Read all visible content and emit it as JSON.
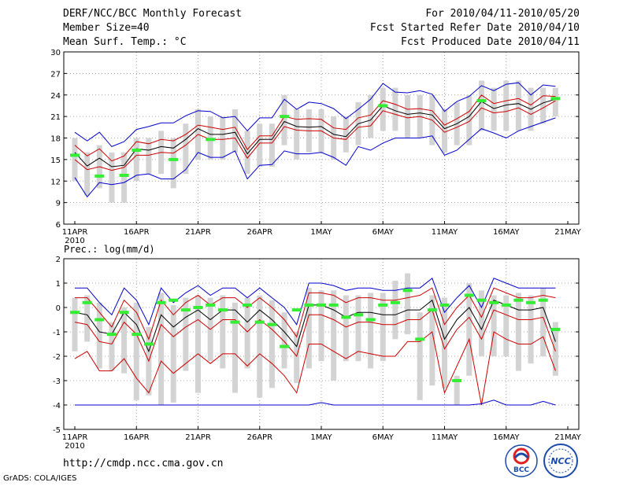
{
  "header": {
    "title": "DERF/NCC/BCC Monthly Forecast",
    "member_size": "Member Size=40",
    "variable": "Mean Surf. Temp.: °C",
    "period": "For 2010/04/11-2010/05/20",
    "refer_date": "Fcst Started Refer Date 2010/04/10",
    "produced_date": "Fcst Produced Date 2010/04/11"
  },
  "footer": {
    "url": "http://cmdp.ncc.cma.gov.cn",
    "grads": "GrADS: COLA/IGES",
    "logo_left": "BCC",
    "logo_right": "NCC"
  },
  "colors": {
    "box": "#d3d3d3",
    "green": "#33ee33",
    "blue": "#0000cc",
    "red": "#cc0000",
    "mean": "#000000"
  },
  "chart_data": [
    {
      "type": "line",
      "title": "Mean Surf. Temp.: °C",
      "ylim": [
        6,
        30
      ],
      "yticks": [
        6,
        9,
        12,
        15,
        18,
        21,
        24,
        27,
        30
      ],
      "x": [
        0,
        1,
        2,
        3,
        4,
        5,
        6,
        7,
        8,
        9,
        10,
        11,
        12,
        13,
        14,
        15,
        16,
        17,
        18,
        19,
        20,
        21,
        22,
        23,
        24,
        25,
        26,
        27,
        28,
        29,
        30,
        31,
        32,
        33,
        34,
        35,
        36,
        37,
        38,
        39
      ],
      "xticks": [
        0,
        5,
        10,
        15,
        20,
        25,
        30,
        35,
        40
      ],
      "xtick_labels": [
        "11APR",
        "16APR",
        "21APR",
        "26APR",
        "1MAY",
        "6MAY",
        "11MAY",
        "16MAY",
        "21MAY"
      ],
      "year_label": "2010",
      "series": [
        {
          "name": "ensemble max",
          "color": "blue",
          "values": [
            18.8,
            17.6,
            18.8,
            16.8,
            17.5,
            19.2,
            19.6,
            20.1,
            20.1,
            21.1,
            21.8,
            21.7,
            20.8,
            21.0,
            19.0,
            20.8,
            20.8,
            23.4,
            22.0,
            23.0,
            22.8,
            22.1,
            20.7,
            22.0,
            23.4,
            25.6,
            24.4,
            24.3,
            24.6,
            24.1,
            21.7,
            23.1,
            23.8,
            25.3,
            24.6,
            25.5,
            25.7,
            24.0,
            25.4,
            25.2
          ]
        },
        {
          "name": "upper percentile",
          "color": "red",
          "values": [
            17.0,
            15.5,
            16.5,
            14.8,
            15.5,
            17.5,
            17.2,
            17.8,
            17.6,
            18.5,
            19.8,
            19.5,
            19.2,
            19.5,
            16.4,
            18.3,
            18.3,
            21.0,
            20.6,
            20.7,
            20.6,
            19.4,
            19.2,
            20.8,
            21.2,
            23.2,
            22.7,
            22.0,
            22.1,
            21.8,
            19.8,
            20.7,
            21.7,
            24.0,
            22.8,
            23.2,
            23.5,
            22.6,
            23.9,
            23.8
          ]
        },
        {
          "name": "ensemble mean",
          "color": "mean",
          "values": [
            16.0,
            14.1,
            15.2,
            14.0,
            14.2,
            16.5,
            16.3,
            16.8,
            16.6,
            17.8,
            19.3,
            18.5,
            18.5,
            18.8,
            15.8,
            17.8,
            17.8,
            20.3,
            19.6,
            19.5,
            19.6,
            18.5,
            18.2,
            20.0,
            20.5,
            22.5,
            21.8,
            21.3,
            21.5,
            21.2,
            19.3,
            20.0,
            21.0,
            23.1,
            22.1,
            22.6,
            22.8,
            22.0,
            22.9,
            23.4
          ]
        },
        {
          "name": "lower percentile",
          "color": "red",
          "values": [
            15.0,
            13.6,
            14.0,
            13.5,
            13.9,
            15.6,
            15.6,
            16.0,
            15.9,
            17.0,
            18.5,
            17.8,
            17.8,
            18.0,
            15.2,
            17.3,
            17.3,
            19.6,
            19.1,
            19.0,
            19.0,
            18.0,
            17.8,
            19.5,
            19.7,
            21.8,
            21.3,
            20.8,
            21.0,
            20.5,
            18.8,
            19.5,
            20.3,
            22.2,
            21.5,
            21.7,
            22.2,
            21.3,
            22.2,
            23.2
          ]
        },
        {
          "name": "ensemble min",
          "color": "blue",
          "values": [
            12.5,
            9.8,
            11.8,
            11.5,
            11.8,
            12.8,
            13.0,
            12.3,
            12.3,
            13.6,
            16.0,
            15.3,
            15.3,
            16.2,
            12.3,
            14.2,
            14.3,
            16.2,
            15.8,
            15.8,
            16.0,
            15.3,
            14.2,
            16.8,
            16.3,
            17.3,
            18.0,
            18.0,
            18.0,
            18.3,
            15.6,
            16.3,
            17.8,
            19.3,
            18.7,
            18.0,
            19.0,
            19.6,
            20.2,
            20.8
          ]
        },
        {
          "name": "observation",
          "color": "green",
          "values": [
            15.6,
            null,
            12.7,
            null,
            12.8,
            16.3,
            null,
            null,
            15.0,
            null,
            null,
            17.8,
            null,
            null,
            null,
            null,
            null,
            21.0,
            null,
            null,
            null,
            null,
            null,
            null,
            null,
            22.5,
            null,
            null,
            null,
            null,
            null,
            null,
            null,
            23.2,
            null,
            null,
            null,
            null,
            null,
            23.5
          ]
        }
      ],
      "box_ranges": [
        [
          12,
          18
        ],
        [
          10,
          16
        ],
        [
          11,
          17
        ],
        [
          9,
          16
        ],
        [
          9,
          16
        ],
        [
          12,
          18
        ],
        [
          13,
          18
        ],
        [
          13,
          19
        ],
        [
          11,
          18
        ],
        [
          13,
          20
        ],
        [
          15,
          22
        ],
        [
          15,
          21
        ],
        [
          15,
          21
        ],
        [
          16,
          22
        ],
        [
          13,
          19
        ],
        [
          14,
          20
        ],
        [
          14,
          20
        ],
        [
          17,
          24
        ],
        [
          15,
          22
        ],
        [
          16,
          22
        ],
        [
          16,
          22
        ],
        [
          15,
          21
        ],
        [
          16,
          21
        ],
        [
          17,
          23
        ],
        [
          18,
          24
        ],
        [
          19,
          25
        ],
        [
          19,
          25
        ],
        [
          18,
          24
        ],
        [
          18,
          24
        ],
        [
          17,
          24
        ],
        [
          16,
          22
        ],
        [
          17,
          23
        ],
        [
          17,
          24
        ],
        [
          19,
          26
        ],
        [
          19,
          25
        ],
        [
          19,
          26
        ],
        [
          19,
          26
        ],
        [
          19,
          25
        ],
        [
          20,
          25
        ],
        [
          21,
          25
        ]
      ]
    },
    {
      "type": "line",
      "title": "Prec.: log(mm/d)",
      "ylim": [
        -5,
        2
      ],
      "yticks": [
        -5,
        -4,
        -3,
        -2,
        -1,
        0,
        1,
        2
      ],
      "x": [
        0,
        1,
        2,
        3,
        4,
        5,
        6,
        7,
        8,
        9,
        10,
        11,
        12,
        13,
        14,
        15,
        16,
        17,
        18,
        19,
        20,
        21,
        22,
        23,
        24,
        25,
        26,
        27,
        28,
        29,
        30,
        31,
        32,
        33,
        34,
        35,
        36,
        37,
        38,
        39
      ],
      "xticks": [
        0,
        5,
        10,
        15,
        20,
        25,
        30,
        35,
        40
      ],
      "xtick_labels": [
        "11APR",
        "16APR",
        "21APR",
        "26APR",
        "1MAY",
        "6MAY",
        "11MAY",
        "16MAY",
        "21MAY"
      ],
      "year_label": "2010",
      "series": [
        {
          "name": "ensemble max",
          "color": "blue",
          "values": [
            0.8,
            0.8,
            0.2,
            -0.3,
            0.8,
            0.3,
            -0.7,
            0.8,
            0.2,
            0.6,
            0.9,
            0.5,
            0.8,
            0.8,
            0.4,
            0.8,
            0.4,
            0.0,
            -0.7,
            1.0,
            1.0,
            0.9,
            0.7,
            0.8,
            0.8,
            0.7,
            0.7,
            0.8,
            0.8,
            1.2,
            -0.2,
            0.4,
            0.9,
            0.0,
            1.2,
            1.0,
            0.8,
            0.8,
            0.8,
            0.8
          ]
        },
        {
          "name": "upper percentile",
          "color": "red",
          "values": [
            0.4,
            0.4,
            -0.2,
            -0.8,
            0.3,
            -0.2,
            -1.3,
            0.3,
            -0.3,
            0.2,
            0.5,
            0.1,
            0.4,
            0.4,
            0.0,
            0.4,
            0.0,
            -0.5,
            -1.2,
            0.6,
            0.6,
            0.5,
            0.2,
            0.4,
            0.4,
            0.3,
            0.3,
            0.4,
            0.5,
            0.8,
            -0.7,
            0.0,
            0.5,
            -0.4,
            0.8,
            0.6,
            0.4,
            0.4,
            0.5,
            0.4
          ]
        },
        {
          "name": "ensemble mean",
          "color": "mean",
          "values": [
            -0.2,
            -0.3,
            -1.0,
            -1.1,
            -0.2,
            -0.7,
            -1.8,
            -0.3,
            -0.8,
            -0.4,
            -0.1,
            -0.5,
            -0.1,
            -0.1,
            -0.6,
            -0.1,
            -0.5,
            -1.0,
            -1.6,
            0.1,
            0.1,
            -0.1,
            -0.4,
            -0.2,
            -0.2,
            -0.3,
            -0.3,
            -0.1,
            -0.1,
            0.3,
            -1.3,
            -0.5,
            0.0,
            -0.9,
            0.3,
            0.1,
            -0.1,
            -0.1,
            0.0,
            -1.4
          ]
        },
        {
          "name": "lower percentile",
          "color": "red",
          "values": [
            -0.6,
            -0.7,
            -1.4,
            -1.5,
            -0.6,
            -1.1,
            -2.2,
            -0.7,
            -1.2,
            -0.8,
            -0.5,
            -0.9,
            -0.5,
            -0.5,
            -1.0,
            -0.5,
            -0.9,
            -1.4,
            -2.0,
            -0.3,
            -0.3,
            -0.5,
            -0.8,
            -0.6,
            -0.6,
            -0.7,
            -0.7,
            -0.5,
            -0.5,
            -0.1,
            -1.7,
            -0.9,
            -0.4,
            -1.3,
            -0.1,
            -0.3,
            -0.5,
            -0.5,
            -0.4,
            -1.8
          ]
        },
        {
          "name": "ensemble p10",
          "color": "red",
          "values": [
            -2.1,
            -1.8,
            -2.6,
            -2.6,
            -2.1,
            -2.9,
            -3.5,
            -2.2,
            -2.7,
            -2.3,
            -1.9,
            -2.3,
            -1.9,
            -1.9,
            -2.4,
            -1.9,
            -2.3,
            -2.8,
            -3.5,
            -1.5,
            -1.5,
            -1.8,
            -2.1,
            -1.8,
            -1.9,
            -2.0,
            -2.0,
            -1.4,
            -1.4,
            -1.0,
            -3.5,
            -2.4,
            -1.3,
            -4.0,
            -1.0,
            -1.3,
            -1.5,
            -1.5,
            -1.2,
            -2.6
          ]
        },
        {
          "name": "ensemble min",
          "color": "blue",
          "values": [
            -4.0,
            -4.0,
            -4.0,
            -4.0,
            -4.0,
            -4.0,
            -4.0,
            -4.0,
            -4.0,
            -4.0,
            -4.0,
            -4.0,
            -4.0,
            -4.0,
            -4.0,
            -4.0,
            -4.0,
            -4.0,
            -4.0,
            -4.0,
            -3.9,
            -4.0,
            -4.0,
            -4.0,
            -4.0,
            -4.0,
            -4.0,
            -4.0,
            -4.0,
            -4.0,
            -4.0,
            -4.0,
            -4.0,
            -3.95,
            -3.8,
            -4.0,
            -4.0,
            -4.0,
            -3.85,
            -4.0
          ]
        },
        {
          "name": "observation",
          "color": "green",
          "values": [
            -0.2,
            0.2,
            -0.5,
            -1.1,
            -0.2,
            -1.1,
            -1.5,
            0.2,
            0.3,
            -0.1,
            0.0,
            0.1,
            -0.1,
            -0.6,
            0.1,
            -0.6,
            -0.7,
            -1.6,
            -0.1,
            0.1,
            0.1,
            0.1,
            -0.4,
            -0.3,
            -0.5,
            0.1,
            0.2,
            0.7,
            -1.3,
            -0.1,
            0.1,
            -3.0,
            0.5,
            0.3,
            0.2,
            0.1,
            0.3,
            0.2,
            0.3,
            -0.9
          ]
        }
      ],
      "box_ranges": [
        [
          -1.8,
          0.4
        ],
        [
          -1.4,
          0.5
        ],
        [
          -2.5,
          0.2
        ],
        [
          -2.6,
          -0.6
        ],
        [
          -2.7,
          0.0
        ],
        [
          -3.8,
          0.2
        ],
        [
          -3.6,
          -0.8
        ],
        [
          -4.0,
          0.6
        ],
        [
          -3.9,
          0.1
        ],
        [
          -2.6,
          0.4
        ],
        [
          -3.5,
          0.5
        ],
        [
          -2.2,
          0.4
        ],
        [
          -2.5,
          0.5
        ],
        [
          -3.5,
          0.2
        ],
        [
          -2.5,
          0.4
        ],
        [
          -3.7,
          0.5
        ],
        [
          -3.3,
          0.3
        ],
        [
          -2.5,
          -0.2
        ],
        [
          -3.1,
          -1.0
        ],
        [
          -2.5,
          0.8
        ],
        [
          -2.2,
          0.7
        ],
        [
          -3.0,
          0.7
        ],
        [
          -2.2,
          0.5
        ],
        [
          -2.2,
          0.5
        ],
        [
          -2.5,
          0.6
        ],
        [
          -2.2,
          0.6
        ],
        [
          -1.3,
          1.1
        ],
        [
          -1.1,
          1.4
        ],
        [
          -3.8,
          -0.2
        ],
        [
          -3.2,
          0.5
        ],
        [
          -3.3,
          0.4
        ],
        [
          -4.0,
          -2.8
        ],
        [
          -2.8,
          1.0
        ],
        [
          -2.0,
          0.7
        ],
        [
          -2.0,
          0.5
        ],
        [
          -2.0,
          0.5
        ],
        [
          -2.6,
          0.6
        ],
        [
          -2.3,
          0.5
        ],
        [
          -2.0,
          0.8
        ],
        [
          -2.8,
          -0.6
        ]
      ]
    }
  ]
}
